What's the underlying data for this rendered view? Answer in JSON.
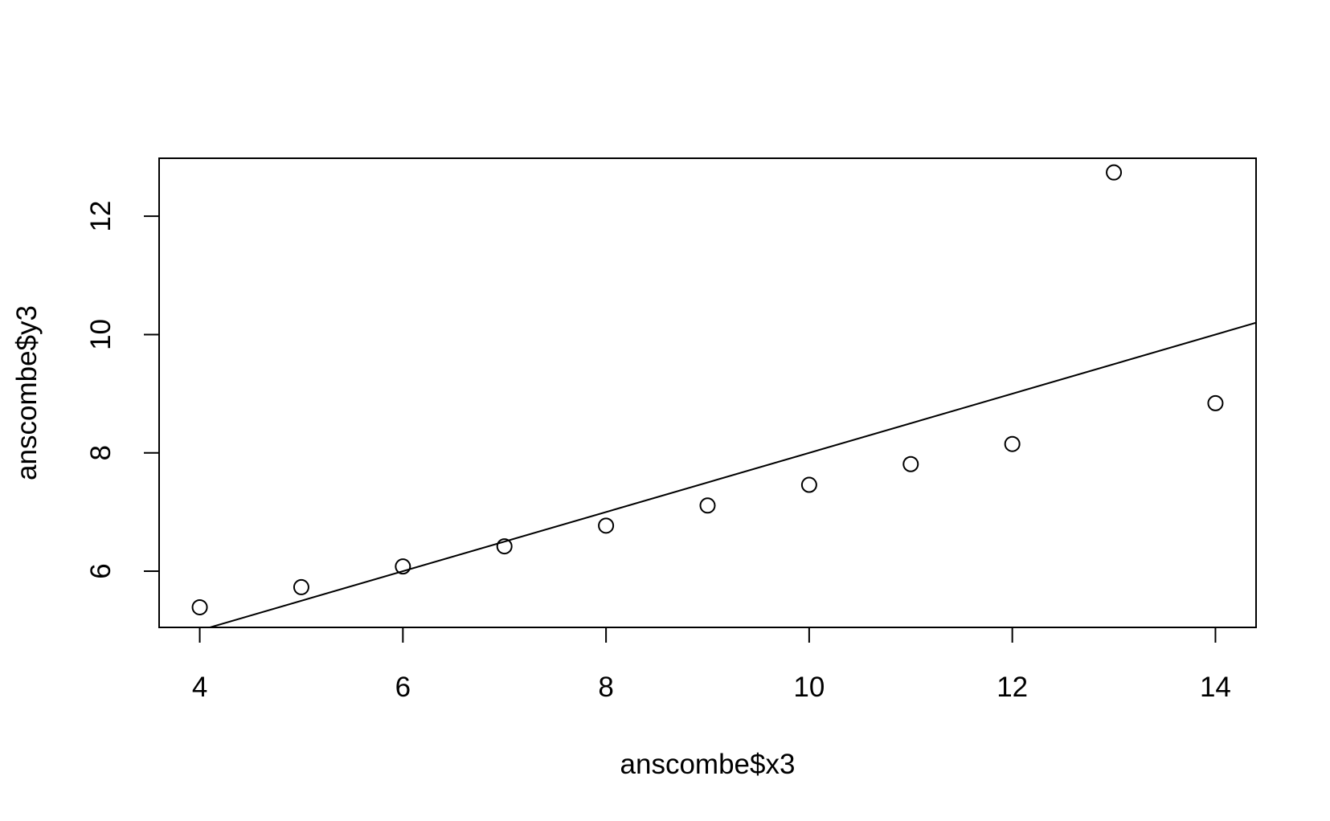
{
  "chart_data": {
    "type": "scatter",
    "title": "",
    "xlabel": "anscombe$x3",
    "ylabel": "anscombe$y3",
    "xlim": [
      3.6,
      14.4
    ],
    "ylim": [
      5.05,
      12.98
    ],
    "grid": false,
    "x_ticks": [
      4,
      6,
      8,
      10,
      12,
      14
    ],
    "y_ticks": [
      6,
      8,
      10,
      12
    ],
    "point_style": "open-circle",
    "points": [
      {
        "x": 4,
        "y": 5.39
      },
      {
        "x": 5,
        "y": 5.73
      },
      {
        "x": 6,
        "y": 6.08
      },
      {
        "x": 7,
        "y": 6.42
      },
      {
        "x": 8,
        "y": 6.77
      },
      {
        "x": 9,
        "y": 7.11
      },
      {
        "x": 10,
        "y": 7.46
      },
      {
        "x": 11,
        "y": 7.81
      },
      {
        "x": 12,
        "y": 8.15
      },
      {
        "x": 13,
        "y": 12.74
      },
      {
        "x": 14,
        "y": 8.84
      }
    ],
    "line": {
      "intercept": 3.0,
      "slope": 0.5
    }
  }
}
